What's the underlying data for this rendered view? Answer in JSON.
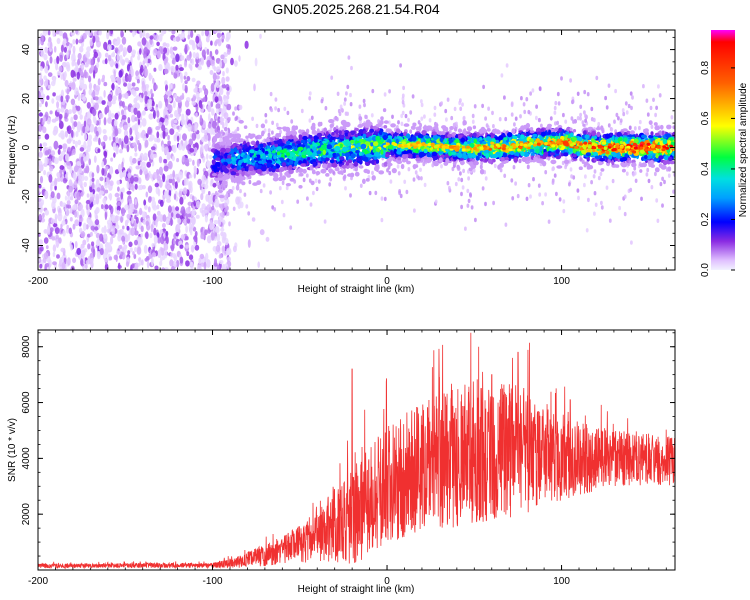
{
  "chart_data": [
    {
      "type": "heatmap",
      "title": "GN05.2025.268.21.54.R04",
      "xlabel": "Height of straight line (km)",
      "ylabel": "Frequency (Hz)",
      "xlim": [
        -200,
        165
      ],
      "ylim": [
        -50,
        48
      ],
      "xticks": [
        -200,
        -100,
        0,
        100
      ],
      "yticks": [
        -40,
        -20,
        0,
        20,
        40
      ],
      "colorbar": {
        "label": "Normalized spectral amplitude",
        "range": [
          0.0,
          0.95
        ],
        "ticks": [
          0.0,
          0.2,
          0.4,
          0.6,
          0.8
        ]
      },
      "regions": [
        {
          "name": "noise",
          "x_range": [
            -200,
            -90
          ],
          "y_range": [
            -50,
            48
          ],
          "amplitude": "0.0–0.12"
        },
        {
          "name": "signal band",
          "x_range": [
            -100,
            165
          ],
          "center_frequency": 0,
          "bandwidth_hz": 10,
          "amplitude": "0.05–0.95"
        }
      ],
      "signal_center": [
        {
          "x": -100,
          "y": -6
        },
        {
          "x": -80,
          "y": -4
        },
        {
          "x": -60,
          "y": -3
        },
        {
          "x": -40,
          "y": -1
        },
        {
          "x": -20,
          "y": 0
        },
        {
          "x": 0,
          "y": 1
        },
        {
          "x": 20,
          "y": 1
        },
        {
          "x": 40,
          "y": 0
        },
        {
          "x": 60,
          "y": 0
        },
        {
          "x": 80,
          "y": 1
        },
        {
          "x": 100,
          "y": 2
        },
        {
          "x": 120,
          "y": 0
        },
        {
          "x": 140,
          "y": 0
        },
        {
          "x": 165,
          "y": 0
        }
      ]
    },
    {
      "type": "line",
      "title": "",
      "xlabel": "Height of straight line (km)",
      "ylabel": "SNR (10 * v/v)",
      "xlim": [
        -200,
        165
      ],
      "ylim": [
        0,
        8600
      ],
      "xticks": [
        -200,
        -100,
        0,
        100
      ],
      "yticks": [
        2000,
        4000,
        6000,
        8000
      ],
      "series": [
        {
          "name": "SNR",
          "color": "#f03030",
          "envelope": [
            {
              "x": -200,
              "mean": 150,
              "spread": 80
            },
            {
              "x": -100,
              "mean": 170,
              "spread": 90
            },
            {
              "x": -85,
              "mean": 280,
              "spread": 220
            },
            {
              "x": -60,
              "mean": 700,
              "spread": 500
            },
            {
              "x": -40,
              "mean": 1200,
              "spread": 900
            },
            {
              "x": -20,
              "mean": 2000,
              "spread": 1800
            },
            {
              "x": 0,
              "mean": 3000,
              "spread": 2200
            },
            {
              "x": 20,
              "mean": 3700,
              "spread": 2300
            },
            {
              "x": 50,
              "mean": 4200,
              "spread": 2600
            },
            {
              "x": 80,
              "mean": 4300,
              "spread": 2300
            },
            {
              "x": 100,
              "mean": 4000,
              "spread": 1500
            },
            {
              "x": 130,
              "mean": 4000,
              "spread": 1000
            },
            {
              "x": 165,
              "mean": 3900,
              "spread": 900
            }
          ],
          "peaks": [
            {
              "x": -20,
              "y": 7200
            },
            {
              "x": 48,
              "y": 8500
            },
            {
              "x": 75,
              "y": 7800
            },
            {
              "x": 60,
              "y": 7000
            },
            {
              "x": 30,
              "y": 6900
            },
            {
              "x": 105,
              "y": 6100
            }
          ]
        }
      ]
    }
  ]
}
